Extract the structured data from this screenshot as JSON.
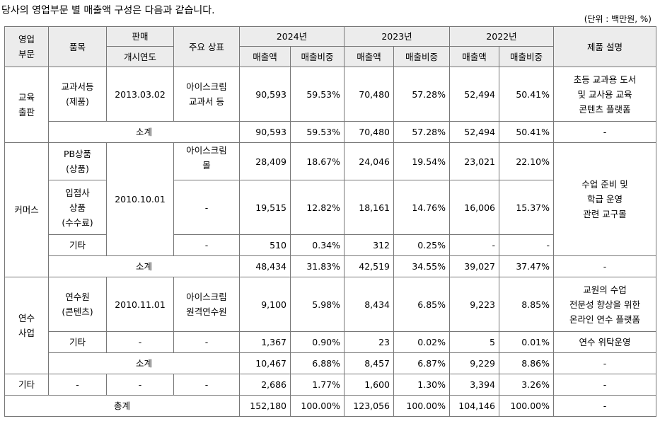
{
  "intro": "당사의 영업부문 별 매출액 구성은 다음과 같습니다.",
  "unit": "(단위 : 백만원, %)",
  "header": {
    "segment": [
      "영업",
      "부문"
    ],
    "item": "품목",
    "launch_top": "판매",
    "launch_bottom": "개시연도",
    "brand": "주요 상표",
    "year_2024": "2024년",
    "year_2023": "2023년",
    "year_2022": "2022년",
    "sales": "매출액",
    "ratio": "매출비중",
    "desc": "제품 설명"
  },
  "edu": {
    "segment": [
      "교육",
      "출판"
    ],
    "item": [
      "교과서등",
      "(제품)"
    ],
    "launch": "2013.03.02",
    "brand": [
      "아이스크림",
      "교과서 등"
    ],
    "values": [
      "90,593",
      "59.53%",
      "70,480",
      "57.28%",
      "52,494",
      "50.41%"
    ],
    "desc": [
      "초등 교과용 도서",
      "및 교사용 교육",
      "콘텐츠 플랫폼"
    ],
    "subtotal_label": "소계",
    "subtotal": [
      "90,593",
      "59.53%",
      "70,480",
      "57.28%",
      "52,494",
      "50.41%"
    ],
    "subtotal_desc": "-"
  },
  "commerce": {
    "segment": "커머스",
    "launch": "2010.10.01",
    "pb": {
      "item": [
        "PB상품",
        "(상품)"
      ],
      "brand": [
        "아이스크림",
        "몰"
      ],
      "values": [
        "28,409",
        "18.67%",
        "24,046",
        "19.54%",
        "23,021",
        "22.10%"
      ]
    },
    "tenant": {
      "item": [
        "입점사",
        "상품",
        "(수수료)"
      ],
      "brand": "-",
      "values": [
        "19,515",
        "12.82%",
        "18,161",
        "14.76%",
        "16,006",
        "15.37%"
      ]
    },
    "other": {
      "item": "기타",
      "brand": "-",
      "values": [
        "510",
        "0.34%",
        "312",
        "0.25%",
        "-",
        "-"
      ]
    },
    "desc": [
      "수업 준비 및",
      "학급 운영",
      "관련 교구몰"
    ],
    "subtotal_label": "소계",
    "subtotal": [
      "48,434",
      "31.83%",
      "42,519",
      "34.55%",
      "39,027",
      "37.47%"
    ],
    "subtotal_desc": "-"
  },
  "training": {
    "segment": [
      "연수",
      "사업"
    ],
    "main": {
      "item": [
        "연수원",
        "(콘텐츠)"
      ],
      "launch": "2010.11.01",
      "brand": [
        "아이스크림",
        "원격연수원"
      ],
      "values": [
        "9,100",
        "5.98%",
        "8,434",
        "6.85%",
        "9,223",
        "8.85%"
      ],
      "desc": [
        "교원의 수업",
        "전문성 향상을 위한",
        "온라인 연수 플랫폼"
      ]
    },
    "other": {
      "item": "기타",
      "launch": "-",
      "brand": "-",
      "values": [
        "1,367",
        "0.90%",
        "23",
        "0.02%",
        "5",
        "0.01%"
      ],
      "desc": "연수 위탁운영"
    },
    "subtotal_label": "소계",
    "subtotal": [
      "10,467",
      "6.88%",
      "8,457",
      "6.87%",
      "9,229",
      "8.86%"
    ],
    "subtotal_desc": "-"
  },
  "others": {
    "segment": "기타",
    "item": "-",
    "launch": "-",
    "brand": "-",
    "values": [
      "2,686",
      "1.77%",
      "1,600",
      "1.30%",
      "3,394",
      "3.26%"
    ],
    "desc": "-"
  },
  "total": {
    "label": "총계",
    "values": [
      "152,180",
      "100.00%",
      "123,056",
      "100.00%",
      "104,146",
      "100.00%"
    ],
    "desc": "-"
  }
}
